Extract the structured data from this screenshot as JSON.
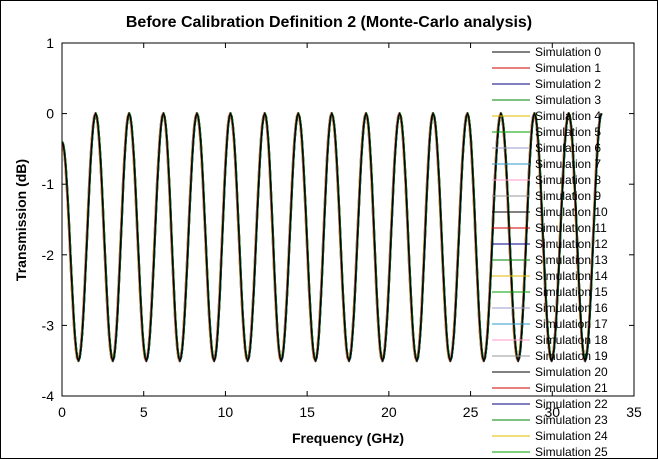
{
  "chart_data": {
    "type": "line",
    "title": "Before Calibration Definition 2 (Monte-Carlo analysis)",
    "xlabel": "Frequency (GHz)",
    "ylabel": "Transmission (dB)",
    "xlim": [
      0,
      35
    ],
    "ylim": [
      -4,
      1
    ],
    "xticks": [
      "0",
      "5",
      "10",
      "15",
      "20",
      "25",
      "30",
      "35"
    ],
    "yticks": [
      "1",
      "0",
      "-1",
      "-2",
      "-3",
      "-4"
    ],
    "grid": false,
    "legend_position": "right",
    "x": [
      0.0,
      1.0,
      2.05,
      3.1,
      4.1,
      5.15,
      6.2,
      7.2,
      8.25,
      9.3,
      10.3,
      11.35,
      12.4,
      13.4,
      14.45,
      15.5,
      16.5,
      17.55,
      18.6,
      19.6,
      20.65,
      21.7,
      22.7,
      23.75,
      24.8,
      25.8,
      26.85,
      27.9,
      28.9,
      29.95,
      31.0,
      32.0
    ],
    "series": [
      {
        "name": "Simulation 0",
        "color": "#000000",
        "y": [
          -0.4,
          -3.5,
          0.0,
          -3.5,
          0.0,
          -3.5,
          0.0,
          -3.5,
          0.0,
          -3.5,
          0.0,
          -3.5,
          0.0,
          -3.5,
          0.0,
          -3.5,
          0.0,
          -3.5,
          0.0,
          -3.5,
          0.0,
          -3.5,
          0.0,
          -3.5,
          0.0,
          -3.5,
          0.0,
          -3.5,
          0.0,
          -3.5,
          0.0,
          -3.5
        ]
      },
      {
        "name": "Simulation 1",
        "color": "#cc0000"
      },
      {
        "name": "Simulation 2",
        "color": "#000080"
      },
      {
        "name": "Simulation 3",
        "color": "#008000"
      },
      {
        "name": "Simulation 4",
        "color": "#e6b800"
      },
      {
        "name": "Simulation 5",
        "color": "#00a000"
      },
      {
        "name": "Simulation 6",
        "color": "#9999cc"
      },
      {
        "name": "Simulation 7",
        "color": "#3399cc"
      },
      {
        "name": "Simulation 8",
        "color": "#ff99cc"
      },
      {
        "name": "Simulation 9",
        "color": "#999999"
      },
      {
        "name": "Simulation 10",
        "color": "#000000"
      },
      {
        "name": "Simulation 11",
        "color": "#cc0000"
      },
      {
        "name": "Simulation 12",
        "color": "#000080"
      },
      {
        "name": "Simulation 13",
        "color": "#008000"
      },
      {
        "name": "Simulation 14",
        "color": "#e6b800"
      },
      {
        "name": "Simulation 15",
        "color": "#00a000"
      },
      {
        "name": "Simulation 16",
        "color": "#9999cc"
      },
      {
        "name": "Simulation 17",
        "color": "#3399cc"
      },
      {
        "name": "Simulation 18",
        "color": "#ff99cc"
      },
      {
        "name": "Simulation 19",
        "color": "#999999"
      },
      {
        "name": "Simulation 20",
        "color": "#000000"
      },
      {
        "name": "Simulation 21",
        "color": "#cc0000"
      },
      {
        "name": "Simulation 22",
        "color": "#000080"
      },
      {
        "name": "Simulation 23",
        "color": "#008000"
      },
      {
        "name": "Simulation 24",
        "color": "#e6b800"
      },
      {
        "name": "Simulation 25",
        "color": "#00a000"
      }
    ]
  }
}
